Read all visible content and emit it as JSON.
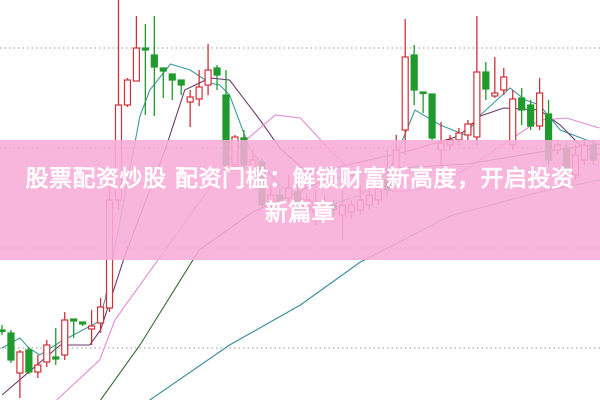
{
  "headline": {
    "text": "股票配资炒股 配资门槛：解锁财富新高度，开启投资新篇章"
  },
  "colors": {
    "up": "#d0313a",
    "down": "#1f9a2c",
    "banner": "#f8acd8",
    "grid": "#9a9a9a"
  },
  "chart_data": {
    "type": "candlestick",
    "title": "",
    "xlabel": "",
    "ylabel": "",
    "ylim": [
      0,
      100
    ],
    "grid": "horizontal-dotted",
    "gridlines": [
      88,
      63,
      38,
      13
    ],
    "candles": [
      [
        17.5,
        18.75,
        16.25,
        17.25
      ],
      [
        16.75,
        17.5,
        9.25,
        10
      ],
      [
        6.75,
        12.5,
        0.5,
        12
      ],
      [
        12.5,
        13.25,
        6.5,
        7
      ],
      [
        7,
        11.25,
        5.5,
        8.75
      ],
      [
        9.5,
        15,
        8.25,
        13.75
      ],
      [
        10.75,
        18,
        8.75,
        10.25
      ],
      [
        11.25,
        22,
        10,
        20
      ],
      [
        20.25,
        20.25,
        15.5,
        19.75
      ],
      [
        19.5,
        19.5,
        18.5,
        19
      ],
      [
        17.75,
        22.5,
        13.75,
        18.5
      ],
      [
        19.25,
        25.5,
        16.75,
        23.25
      ],
      [
        23,
        55,
        22,
        50
      ],
      [
        50,
        100,
        47.5,
        73.75
      ],
      [
        73.75,
        80.5,
        73.25,
        80
      ],
      [
        79.75,
        96,
        79.75,
        88
      ],
      [
        88,
        94,
        71.25,
        87.5
      ],
      [
        86.25,
        96,
        71,
        83.25
      ],
      [
        83,
        83,
        75.5,
        82.25
      ],
      [
        81.5,
        81.5,
        75,
        80
      ],
      [
        80,
        80,
        76.25,
        78.75
      ],
      [
        74.5,
        77.5,
        68.25,
        75.75
      ],
      [
        75.25,
        82.5,
        73.5,
        78.25
      ],
      [
        78.75,
        89,
        76.25,
        82.5
      ],
      [
        83,
        83.75,
        77.5,
        81.25
      ],
      [
        76.25,
        82.5,
        58,
        58.75
      ],
      [
        58.75,
        66.25,
        57.5,
        65.75
      ],
      [
        65.5,
        67.5,
        57.5,
        58.75
      ],
      [
        56.25,
        62.5,
        55,
        60
      ],
      [
        59.5,
        60.5,
        48,
        48.75
      ],
      [
        49.25,
        53.75,
        47.5,
        51.25
      ],
      [
        51.25,
        53,
        48.75,
        50
      ],
      [
        50.5,
        56.25,
        49.5,
        53
      ],
      [
        52,
        53.75,
        46.25,
        47
      ],
      [
        47.5,
        51.25,
        46.25,
        50
      ],
      [
        47,
        52.5,
        43.75,
        48.75
      ],
      [
        48,
        51.25,
        46.25,
        49.25
      ],
      [
        48.75,
        50,
        45,
        47.5
      ],
      [
        46.25,
        52.5,
        40,
        48.75
      ],
      [
        47,
        50,
        45.5,
        48.75
      ],
      [
        47.5,
        53.75,
        46.25,
        50
      ],
      [
        48.75,
        55,
        47.5,
        51.25
      ],
      [
        50,
        57.5,
        48.75,
        53
      ],
      [
        55,
        62.5,
        51.25,
        52.5
      ],
      [
        57.5,
        66.25,
        56.25,
        62.5
      ],
      [
        67.5,
        95.25,
        61.25,
        85.75
      ],
      [
        86.25,
        88.75,
        73.75,
        77.5
      ],
      [
        77,
        77,
        71.75,
        76.75
      ],
      [
        76.5,
        76.5,
        65,
        65.5
      ],
      [
        62.5,
        69.5,
        58.75,
        64.25
      ],
      [
        63.75,
        66.25,
        62.5,
        65
      ],
      [
        65,
        68,
        63.75,
        66.75
      ],
      [
        66.25,
        70,
        65,
        69
      ],
      [
        65.75,
        96,
        63.75,
        82
      ],
      [
        82,
        84.5,
        75,
        77.75
      ],
      [
        76,
        85.75,
        75.5,
        76.75
      ],
      [
        77.5,
        83,
        76.25,
        80.75
      ],
      [
        63.75,
        77.5,
        62.5,
        75.25
      ],
      [
        75.5,
        78,
        68.75,
        72.5
      ],
      [
        73.75,
        75,
        67.5,
        68.5
      ],
      [
        68.5,
        80.5,
        67.5,
        76.75
      ],
      [
        71.5,
        75,
        58.75,
        60
      ],
      [
        62.5,
        65,
        61.25,
        63.75
      ],
      [
        63,
        65,
        56.25,
        58
      ],
      [
        56.25,
        63.75,
        55,
        61.25
      ],
      [
        60,
        65,
        58.75,
        63.75
      ],
      [
        63.75,
        65,
        58.75,
        60
      ]
    ],
    "candle_format": [
      "open",
      "high",
      "low",
      "close"
    ],
    "moving_averages": [
      {
        "color": "#3b9aa0",
        "points": [
          [
            0,
            13
          ],
          [
            2,
            15.5
          ],
          [
            3,
            13
          ],
          [
            4.2,
            11.25
          ],
          [
            6.5,
            14.5
          ],
          [
            10.7,
            19.5
          ],
          [
            11.5,
            25
          ],
          [
            15.4,
            71
          ],
          [
            16.5,
            77.5
          ],
          [
            18.8,
            84
          ],
          [
            21,
            82.5
          ],
          [
            23.2,
            79.25
          ],
          [
            24.3,
            78.75
          ],
          [
            25.4,
            76.25
          ],
          [
            27.7,
            62.5
          ],
          [
            31,
            53.75
          ],
          [
            33.3,
            50
          ],
          [
            36.6,
            48.75
          ],
          [
            40,
            51.25
          ],
          [
            43.3,
            57.5
          ],
          [
            46.1,
            72.5
          ],
          [
            48.9,
            68.75
          ],
          [
            51.7,
            66.25
          ],
          [
            53.4,
            71.25
          ],
          [
            56.7,
            78
          ],
          [
            58.4,
            75
          ],
          [
            60,
            73.75
          ],
          [
            62.3,
            67.5
          ],
          [
            66.7,
            63.75
          ]
        ]
      },
      {
        "color": "#6e3a6e",
        "points": [
          [
            0,
            1.25
          ],
          [
            6.5,
            13.75
          ],
          [
            9.8,
            13.75
          ],
          [
            11,
            17.5
          ],
          [
            13.7,
            36
          ],
          [
            18.2,
            62.5
          ],
          [
            20.4,
            77.5
          ],
          [
            23.2,
            80.5
          ],
          [
            25.4,
            80
          ],
          [
            28.8,
            70
          ],
          [
            31,
            63
          ],
          [
            34,
            57
          ],
          [
            37,
            58
          ],
          [
            41,
            60
          ],
          [
            45,
            62
          ],
          [
            48,
            64
          ],
          [
            51,
            66
          ],
          [
            53.4,
            71
          ],
          [
            56,
            73
          ],
          [
            60,
            72.5
          ],
          [
            62.3,
            68.75
          ],
          [
            64.5,
            63.75
          ],
          [
            66.7,
            61.25
          ]
        ]
      },
      {
        "color": "#e58ad6",
        "points": [
          [
            6.1,
            0
          ],
          [
            10.9,
            10
          ],
          [
            12.6,
            20
          ],
          [
            18.2,
            37.5
          ],
          [
            26.6,
            63.75
          ],
          [
            30.5,
            71.25
          ],
          [
            33.3,
            70.5
          ],
          [
            36.6,
            62.5
          ],
          [
            40,
            55
          ],
          [
            44,
            52
          ],
          [
            48,
            53
          ],
          [
            52,
            58
          ],
          [
            56,
            64
          ],
          [
            60,
            70
          ],
          [
            63,
            70.5
          ],
          [
            66.7,
            68
          ]
        ]
      },
      {
        "color": "#2f6b2f",
        "points": [
          [
            11,
            0
          ],
          [
            15.4,
            13.75
          ],
          [
            22,
            37.5
          ],
          [
            28,
            47
          ],
          [
            36,
            55
          ],
          [
            44,
            58
          ],
          [
            52,
            59
          ],
          [
            60,
            62
          ],
          [
            66.7,
            64
          ]
        ]
      },
      {
        "color": "#3a8a9a",
        "points": [
          [
            16.5,
            0
          ],
          [
            25.4,
            13.75
          ],
          [
            33.3,
            23.75
          ],
          [
            40,
            34.5
          ],
          [
            50,
            46
          ],
          [
            60,
            52
          ],
          [
            66.7,
            55
          ]
        ]
      }
    ]
  }
}
